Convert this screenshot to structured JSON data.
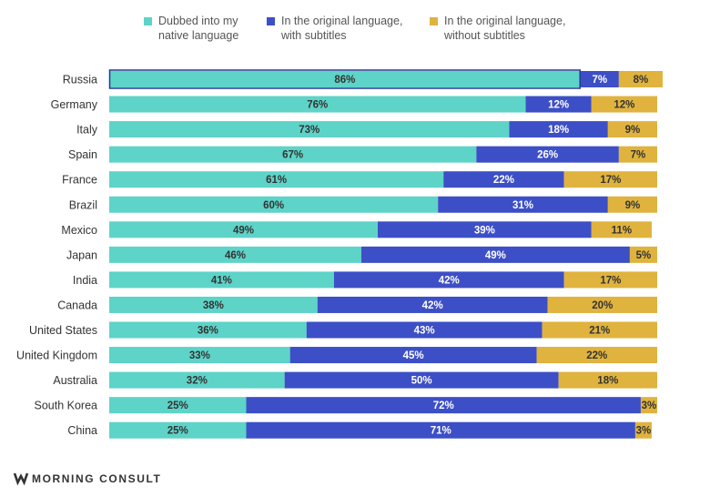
{
  "chart_data": {
    "type": "bar",
    "orientation": "horizontal",
    "stacked": true,
    "categories": [
      "Russia",
      "Germany",
      "Italy",
      "Spain",
      "France",
      "Brazil",
      "Mexico",
      "Japan",
      "India",
      "Canada",
      "United States",
      "United Kingdom",
      "Australia",
      "South Korea",
      "China"
    ],
    "series": [
      {
        "name": "Dubbed into my native language",
        "color": "#5ed3c8",
        "values": [
          86,
          76,
          73,
          67,
          61,
          60,
          49,
          46,
          41,
          38,
          36,
          33,
          32,
          25,
          25
        ],
        "labels": [
          "86%",
          "76%",
          "73%",
          "67%",
          "61%",
          "60%",
          "49%",
          "46%",
          "41%",
          "38%",
          "36%",
          "33%",
          "32%",
          "25%",
          "25%"
        ]
      },
      {
        "name": "In the original language, with subtitles",
        "color": "#3d4fc6",
        "values": [
          7,
          12,
          18,
          26,
          22,
          31,
          39,
          49,
          42,
          42,
          43,
          45,
          50,
          72,
          71
        ],
        "labels": [
          "7%",
          "12%",
          "18%",
          "26%",
          "22%",
          "31%",
          "39%",
          "49%",
          "42%",
          "42%",
          "43%",
          "45%",
          "50%",
          "72%",
          "71%"
        ]
      },
      {
        "name": "In the original language, without subtitles",
        "color": "#dfb33e",
        "values": [
          8,
          12,
          9,
          7,
          17,
          9,
          11,
          5,
          17,
          20,
          21,
          22,
          18,
          3,
          3
        ],
        "labels": [
          "8%",
          "12%",
          "9%",
          "7%",
          "17%",
          "9%",
          "11%",
          "5%",
          "17%",
          "20%",
          "21%",
          "22%",
          "18%",
          "3%",
          "3%"
        ]
      }
    ],
    "legend_position": "top",
    "legend_lines": [
      [
        "Dubbed into my",
        "native language"
      ],
      [
        "In the original language,",
        "with subtitles"
      ],
      [
        "In the original language,",
        "without subtitles"
      ]
    ],
    "xlim": [
      0,
      100
    ],
    "grid": false,
    "source": "MORNING CONSULT"
  },
  "colors": {
    "text": "#333333",
    "legend_text": "#555555",
    "highlight_border": "#1f3a93"
  }
}
